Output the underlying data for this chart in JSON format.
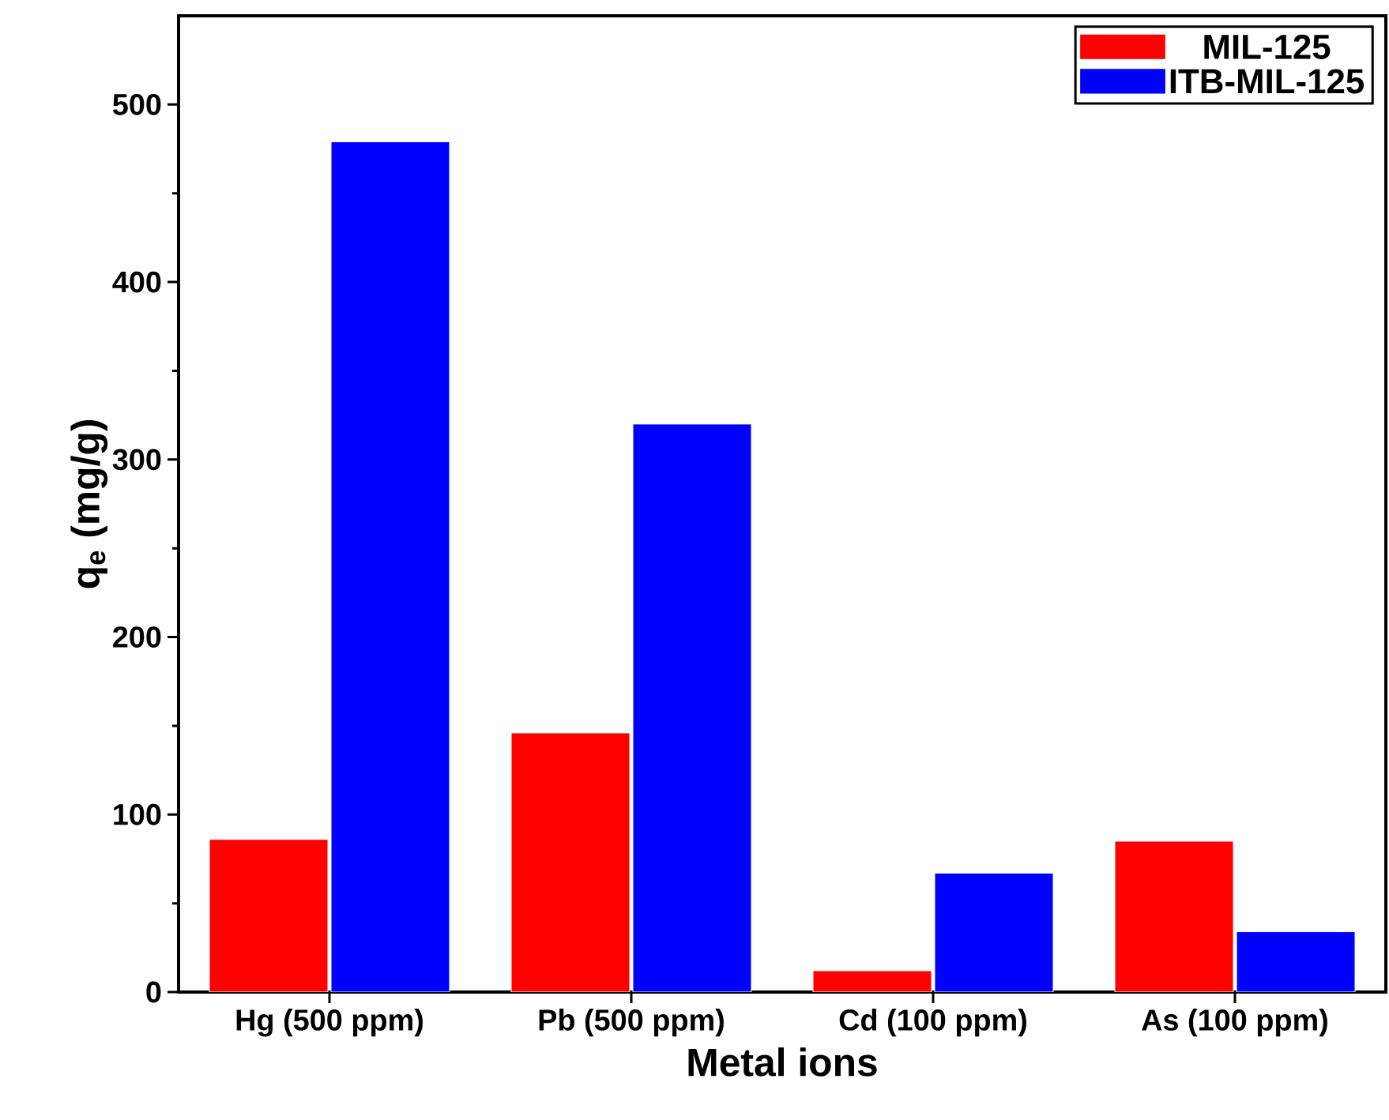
{
  "chart_data": {
    "type": "bar",
    "xlabel": "Metal ions",
    "ylabel": "q$_{e}$ (mg/g)",
    "categories": [
      "Hg (500 ppm)",
      "Pb (500 ppm)",
      "Cd (100 ppm)",
      "As (100 ppm)"
    ],
    "series": [
      {
        "name": "MIL-125",
        "color": "#ff0000",
        "values": [
          86,
          146,
          12,
          85
        ]
      },
      {
        "name": "ITB-MIL-125",
        "color": "#0000ff",
        "values": [
          479,
          320,
          67,
          34
        ]
      }
    ],
    "ylim": [
      0,
      550
    ],
    "yticks": [
      0,
      100,
      200,
      300,
      400,
      500
    ],
    "legend": "top right",
    "grid": false
  }
}
